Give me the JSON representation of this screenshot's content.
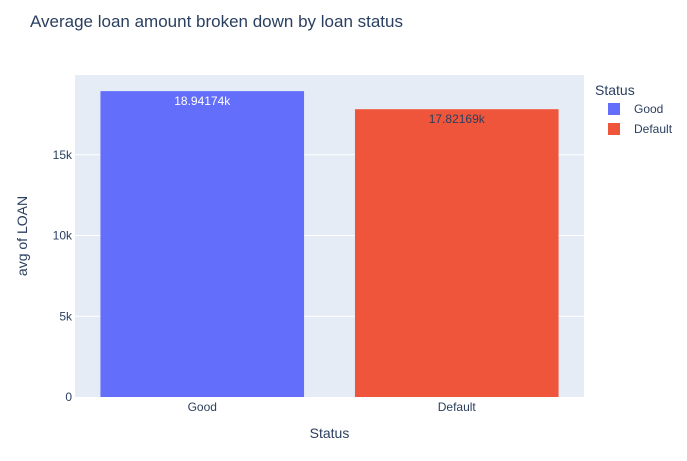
{
  "chart_data": {
    "type": "bar",
    "title": "Average loan amount broken down by loan status",
    "xlabel": "Status",
    "ylabel": "avg of LOAN",
    "categories": [
      "Good",
      "Default"
    ],
    "values": [
      18941.74,
      17821.69
    ],
    "data_labels": [
      "18.94174k",
      "17.82169k"
    ],
    "colors": [
      "#636efa",
      "#ef553b"
    ],
    "label_colors": [
      "#ffffff",
      "#2a3f5f"
    ],
    "ylim": [
      0,
      19940
    ],
    "yticks": [
      0,
      5000,
      10000,
      15000
    ],
    "ytick_labels": [
      "0",
      "5k",
      "10k",
      "15k"
    ],
    "grid": true,
    "plot_background": "#e5ecf6",
    "legend": {
      "title": "Status",
      "placement": "top-right",
      "entries": [
        "Good",
        "Default"
      ]
    }
  }
}
